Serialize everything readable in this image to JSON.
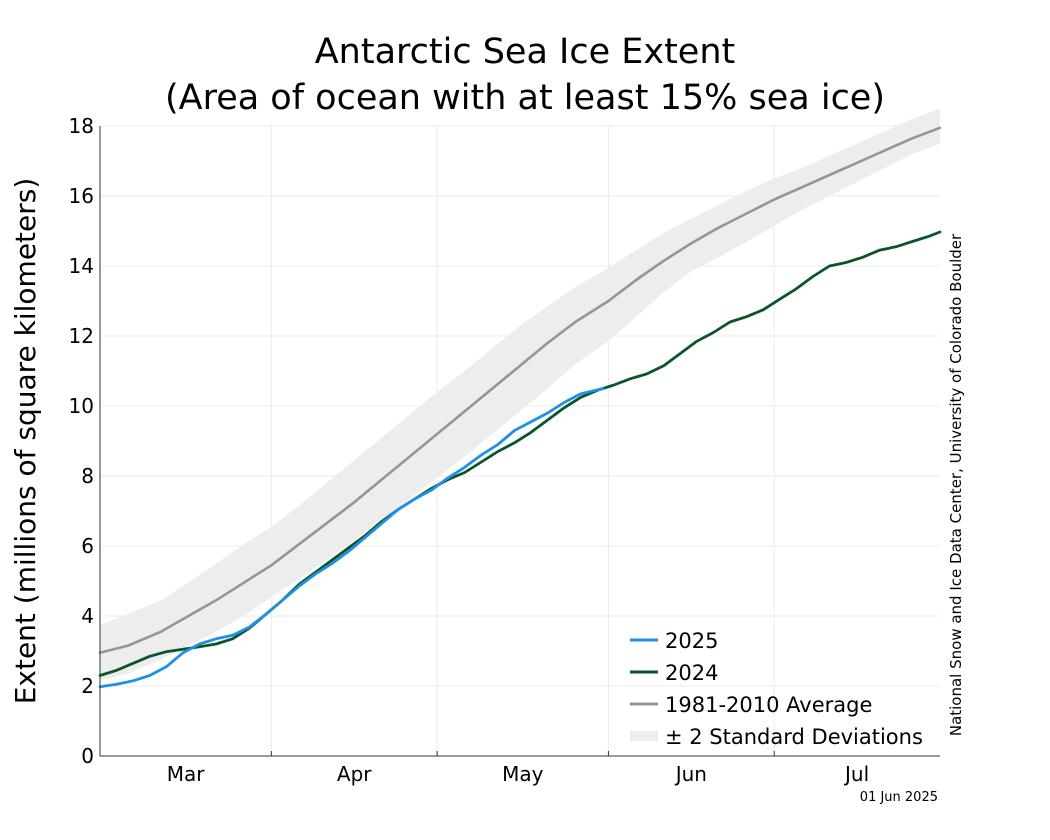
{
  "chart_data": {
    "type": "line",
    "title": [
      "Antarctic Sea Ice Extent",
      "(Area of ocean with at least 15% sea ice)"
    ],
    "xlabel": "",
    "ylabel": "Extent (millions of square kilometers)",
    "ylim": [
      0,
      18
    ],
    "yticks": [
      "0",
      "2",
      "4",
      "6",
      "8",
      "10",
      "12",
      "14",
      "16",
      "18"
    ],
    "xlim": [
      0,
      152
    ],
    "month_boundaries": [
      0,
      31,
      61,
      92,
      122,
      153
    ],
    "month_labels": [
      "Mar",
      "Apr",
      "May",
      "Jun",
      "Jul"
    ],
    "grid": true,
    "legend_position": "bottom-right",
    "series": [
      {
        "name": "± 2 Standard Deviations",
        "color": "#ededed",
        "kind": "band",
        "x": [
          0,
          5,
          11,
          16,
          21,
          26,
          31,
          36,
          41,
          46,
          51,
          56,
          61,
          66,
          71,
          76,
          81,
          86,
          92,
          97,
          102,
          107,
          112,
          117,
          122,
          127,
          132,
          137,
          142,
          147,
          152
        ],
        "lower": [
          2.15,
          2.35,
          2.75,
          3.15,
          3.55,
          4.0,
          4.55,
          5.05,
          5.6,
          6.15,
          6.75,
          7.35,
          7.95,
          8.55,
          9.2,
          9.85,
          10.5,
          11.2,
          11.85,
          12.55,
          13.25,
          13.85,
          14.25,
          14.7,
          15.15,
          15.6,
          16.0,
          16.4,
          16.8,
          17.2,
          17.5
        ],
        "upper": [
          3.75,
          4.05,
          4.45,
          4.95,
          5.5,
          6.05,
          6.55,
          7.15,
          7.8,
          8.45,
          9.1,
          9.75,
          10.4,
          11.0,
          11.65,
          12.3,
          12.85,
          13.4,
          13.95,
          14.45,
          14.95,
          15.35,
          15.75,
          16.15,
          16.5,
          16.8,
          17.15,
          17.5,
          17.85,
          18.2,
          18.5
        ]
      },
      {
        "name": "1981-2010 Average",
        "color": "#959595",
        "kind": "line",
        "x": [
          0,
          5,
          11,
          16,
          21,
          26,
          31,
          36,
          41,
          46,
          51,
          56,
          61,
          66,
          71,
          76,
          81,
          86,
          92,
          97,
          102,
          107,
          112,
          117,
          122,
          127,
          132,
          137,
          142,
          147,
          152
        ],
        "values": [
          2.95,
          3.15,
          3.55,
          4.0,
          4.45,
          4.95,
          5.45,
          6.05,
          6.65,
          7.25,
          7.9,
          8.55,
          9.2,
          9.85,
          10.5,
          11.15,
          11.8,
          12.4,
          13.0,
          13.6,
          14.15,
          14.65,
          15.1,
          15.5,
          15.9,
          16.25,
          16.6,
          16.95,
          17.3,
          17.65,
          17.95
        ]
      },
      {
        "name": "2024",
        "color": "#0b5427",
        "kind": "line",
        "x": [
          0,
          3,
          6,
          9,
          12,
          15,
          18,
          21,
          24,
          27,
          30,
          33,
          36,
          39,
          42,
          45,
          48,
          51,
          54,
          57,
          60,
          63,
          66,
          69,
          72,
          75,
          78,
          81,
          84,
          87,
          90,
          93,
          96,
          99,
          102,
          105,
          108,
          111,
          114,
          117,
          120,
          123,
          126,
          129,
          132,
          135,
          138,
          141,
          144,
          147,
          150,
          152
        ],
        "values": [
          2.3,
          2.45,
          2.65,
          2.85,
          2.98,
          3.05,
          3.12,
          3.2,
          3.35,
          3.65,
          4.05,
          4.45,
          4.9,
          5.25,
          5.6,
          5.95,
          6.3,
          6.7,
          7.05,
          7.35,
          7.65,
          7.9,
          8.1,
          8.4,
          8.7,
          8.95,
          9.25,
          9.6,
          9.95,
          10.25,
          10.45,
          10.6,
          10.78,
          10.92,
          11.15,
          11.5,
          11.85,
          12.1,
          12.4,
          12.55,
          12.75,
          13.05,
          13.35,
          13.7,
          14.0,
          14.1,
          14.25,
          14.45,
          14.55,
          14.7,
          14.85,
          14.97
        ]
      },
      {
        "name": "2025",
        "color": "#1e90e6",
        "kind": "line",
        "x": [
          0,
          3,
          6,
          9,
          12,
          15,
          18,
          21,
          24,
          27,
          30,
          33,
          36,
          39,
          42,
          45,
          48,
          51,
          54,
          57,
          60,
          63,
          66,
          69,
          72,
          75,
          78,
          81,
          84,
          87,
          91
        ],
        "values": [
          1.98,
          2.05,
          2.15,
          2.3,
          2.55,
          2.95,
          3.2,
          3.35,
          3.45,
          3.68,
          4.05,
          4.45,
          4.85,
          5.2,
          5.5,
          5.85,
          6.25,
          6.65,
          7.05,
          7.35,
          7.6,
          7.95,
          8.25,
          8.6,
          8.9,
          9.3,
          9.55,
          9.8,
          10.1,
          10.35,
          10.5
        ]
      }
    ],
    "legend_order": [
      "2025",
      "2024",
      "1981-2010 Average",
      "± 2 Standard Deviations"
    ]
  },
  "credit": "National Snow and Ice Data Center, University of Colorado Boulder",
  "date_stamp": "01 Jun 2025"
}
